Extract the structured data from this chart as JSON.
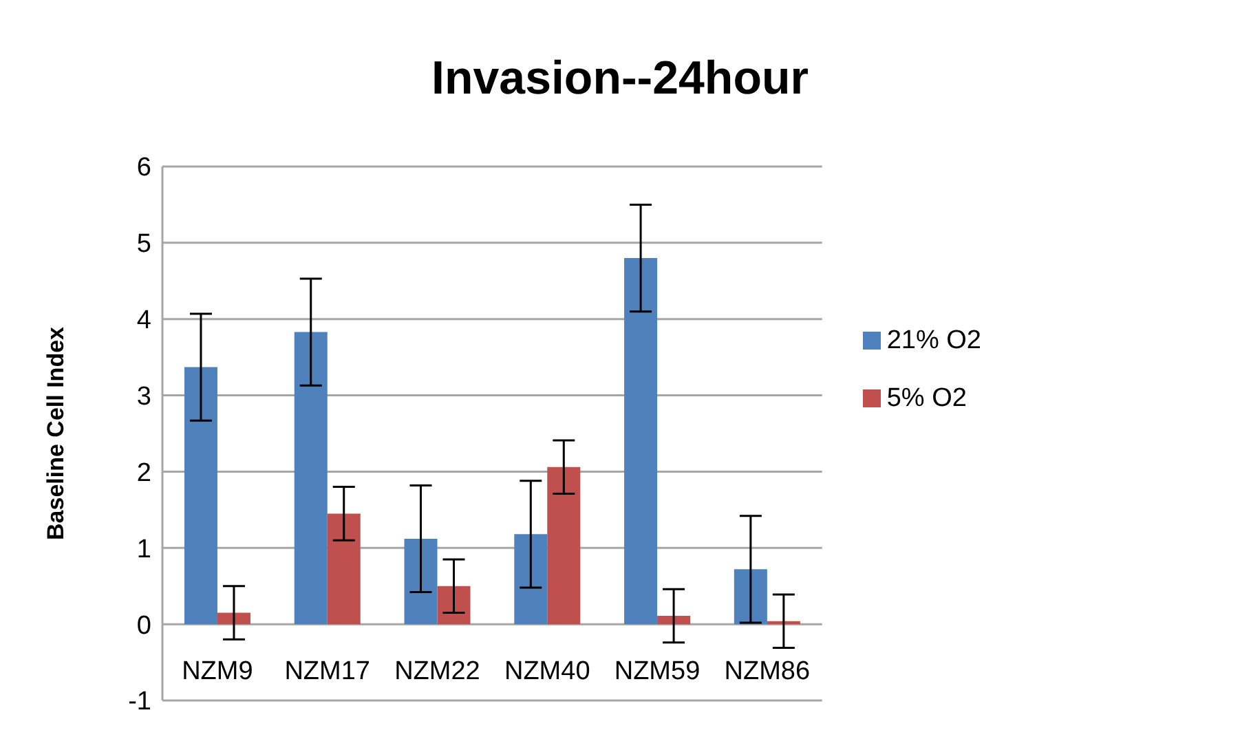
{
  "chart_data": {
    "type": "bar",
    "title": "Invasion--24hour",
    "ylabel": "Baseline Cell Index",
    "categories": [
      "NZM9",
      "NZM17",
      "NZM22",
      "NZM40",
      "NZM59",
      "NZM86"
    ],
    "series": [
      {
        "name": "21% O2",
        "color": "#4f81bd",
        "values": [
          3.37,
          3.83,
          1.12,
          1.18,
          4.8,
          0.72
        ],
        "errors": [
          0.7,
          0.7,
          0.7,
          0.7,
          0.7,
          0.7
        ]
      },
      {
        "name": "5% O2",
        "color": "#c0504d",
        "values": [
          0.15,
          1.45,
          0.5,
          2.06,
          0.11,
          0.04
        ],
        "errors": [
          0.35,
          0.35,
          0.35,
          0.35,
          0.35,
          0.35
        ]
      }
    ],
    "ylim": [
      -1,
      6
    ],
    "yticks": [
      -1,
      0,
      1,
      2,
      3,
      4,
      5,
      6
    ],
    "grid": "y",
    "legend": "right"
  }
}
